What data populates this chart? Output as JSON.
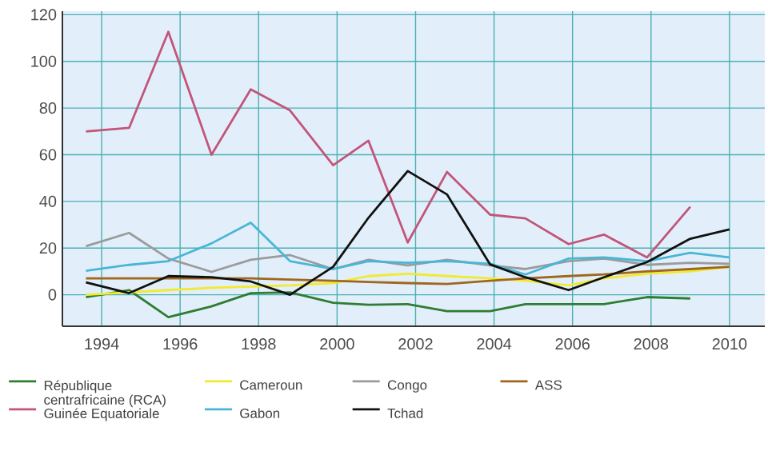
{
  "chart_data": {
    "type": "line",
    "x": [
      1993.6,
      1994.7,
      1995.7,
      1996.8,
      1997.8,
      1998.8,
      1999.9,
      2000.8,
      2001.8,
      2002.8,
      2003.9,
      2004.8,
      2005.9,
      2006.8,
      2007.9,
      2009.0,
      2010.0
    ],
    "series": [
      {
        "name": "République centrafricaine (RCA)",
        "color": "#2e7d32",
        "values": [
          -1,
          2,
          -9.6,
          -5,
          0.7,
          1,
          -3.4,
          -4.3,
          -4,
          -7,
          -7,
          -4,
          -4,
          -4,
          -1,
          -1.6,
          null
        ]
      },
      {
        "name": "Cameroun",
        "color": "#f2ea2e",
        "values": [
          0,
          1,
          2,
          3,
          3.5,
          4,
          5,
          8,
          9,
          8,
          7,
          6,
          4,
          7,
          9,
          10,
          12
        ]
      },
      {
        "name": "Congo",
        "color": "#9b9b9b",
        "values": [
          20.8,
          26.5,
          15.5,
          9.8,
          15,
          17,
          11,
          15,
          12.6,
          15,
          12.6,
          11,
          14.4,
          15.5,
          12.8,
          13.7,
          13.3
        ]
      },
      {
        "name": "ASS",
        "color": "#a0661c",
        "values": [
          7,
          7,
          7,
          7,
          7,
          6.5,
          6,
          5.5,
          5,
          4.6,
          6,
          7,
          8,
          8.7,
          10,
          11,
          12
        ]
      },
      {
        "name": "Guinée Equatoriale",
        "color": "#c2557a",
        "values": [
          70,
          71.5,
          112.7,
          60,
          88,
          79,
          55.5,
          66,
          22.4,
          52.6,
          34.3,
          32.7,
          21.7,
          25.8,
          16,
          37.7,
          null
        ]
      },
      {
        "name": "Gabon",
        "color": "#49b6d6",
        "values": [
          10.3,
          12.8,
          14.4,
          22,
          30.9,
          14.4,
          11,
          14.4,
          13.7,
          14.4,
          13.3,
          8.7,
          15.5,
          16,
          14.4,
          18,
          16
        ]
      },
      {
        "name": "Tchad",
        "color": "#111111",
        "values": [
          5.3,
          0.7,
          8,
          7.5,
          5.7,
          0,
          12,
          33,
          53,
          43,
          13,
          7.5,
          2,
          7.5,
          14,
          24,
          28
        ]
      }
    ],
    "xlim": [
      1993.0,
      2010.9
    ],
    "ylim": [
      -13.5,
      121.5
    ],
    "xticks": [
      1994,
      1996,
      1998,
      2000,
      2002,
      2004,
      2006,
      2008,
      2010
    ],
    "yticks": [
      0,
      20,
      40,
      60,
      80,
      100,
      120
    ],
    "grid": true,
    "legend": "bottom",
    "marker": "none",
    "line_style": "solid"
  }
}
